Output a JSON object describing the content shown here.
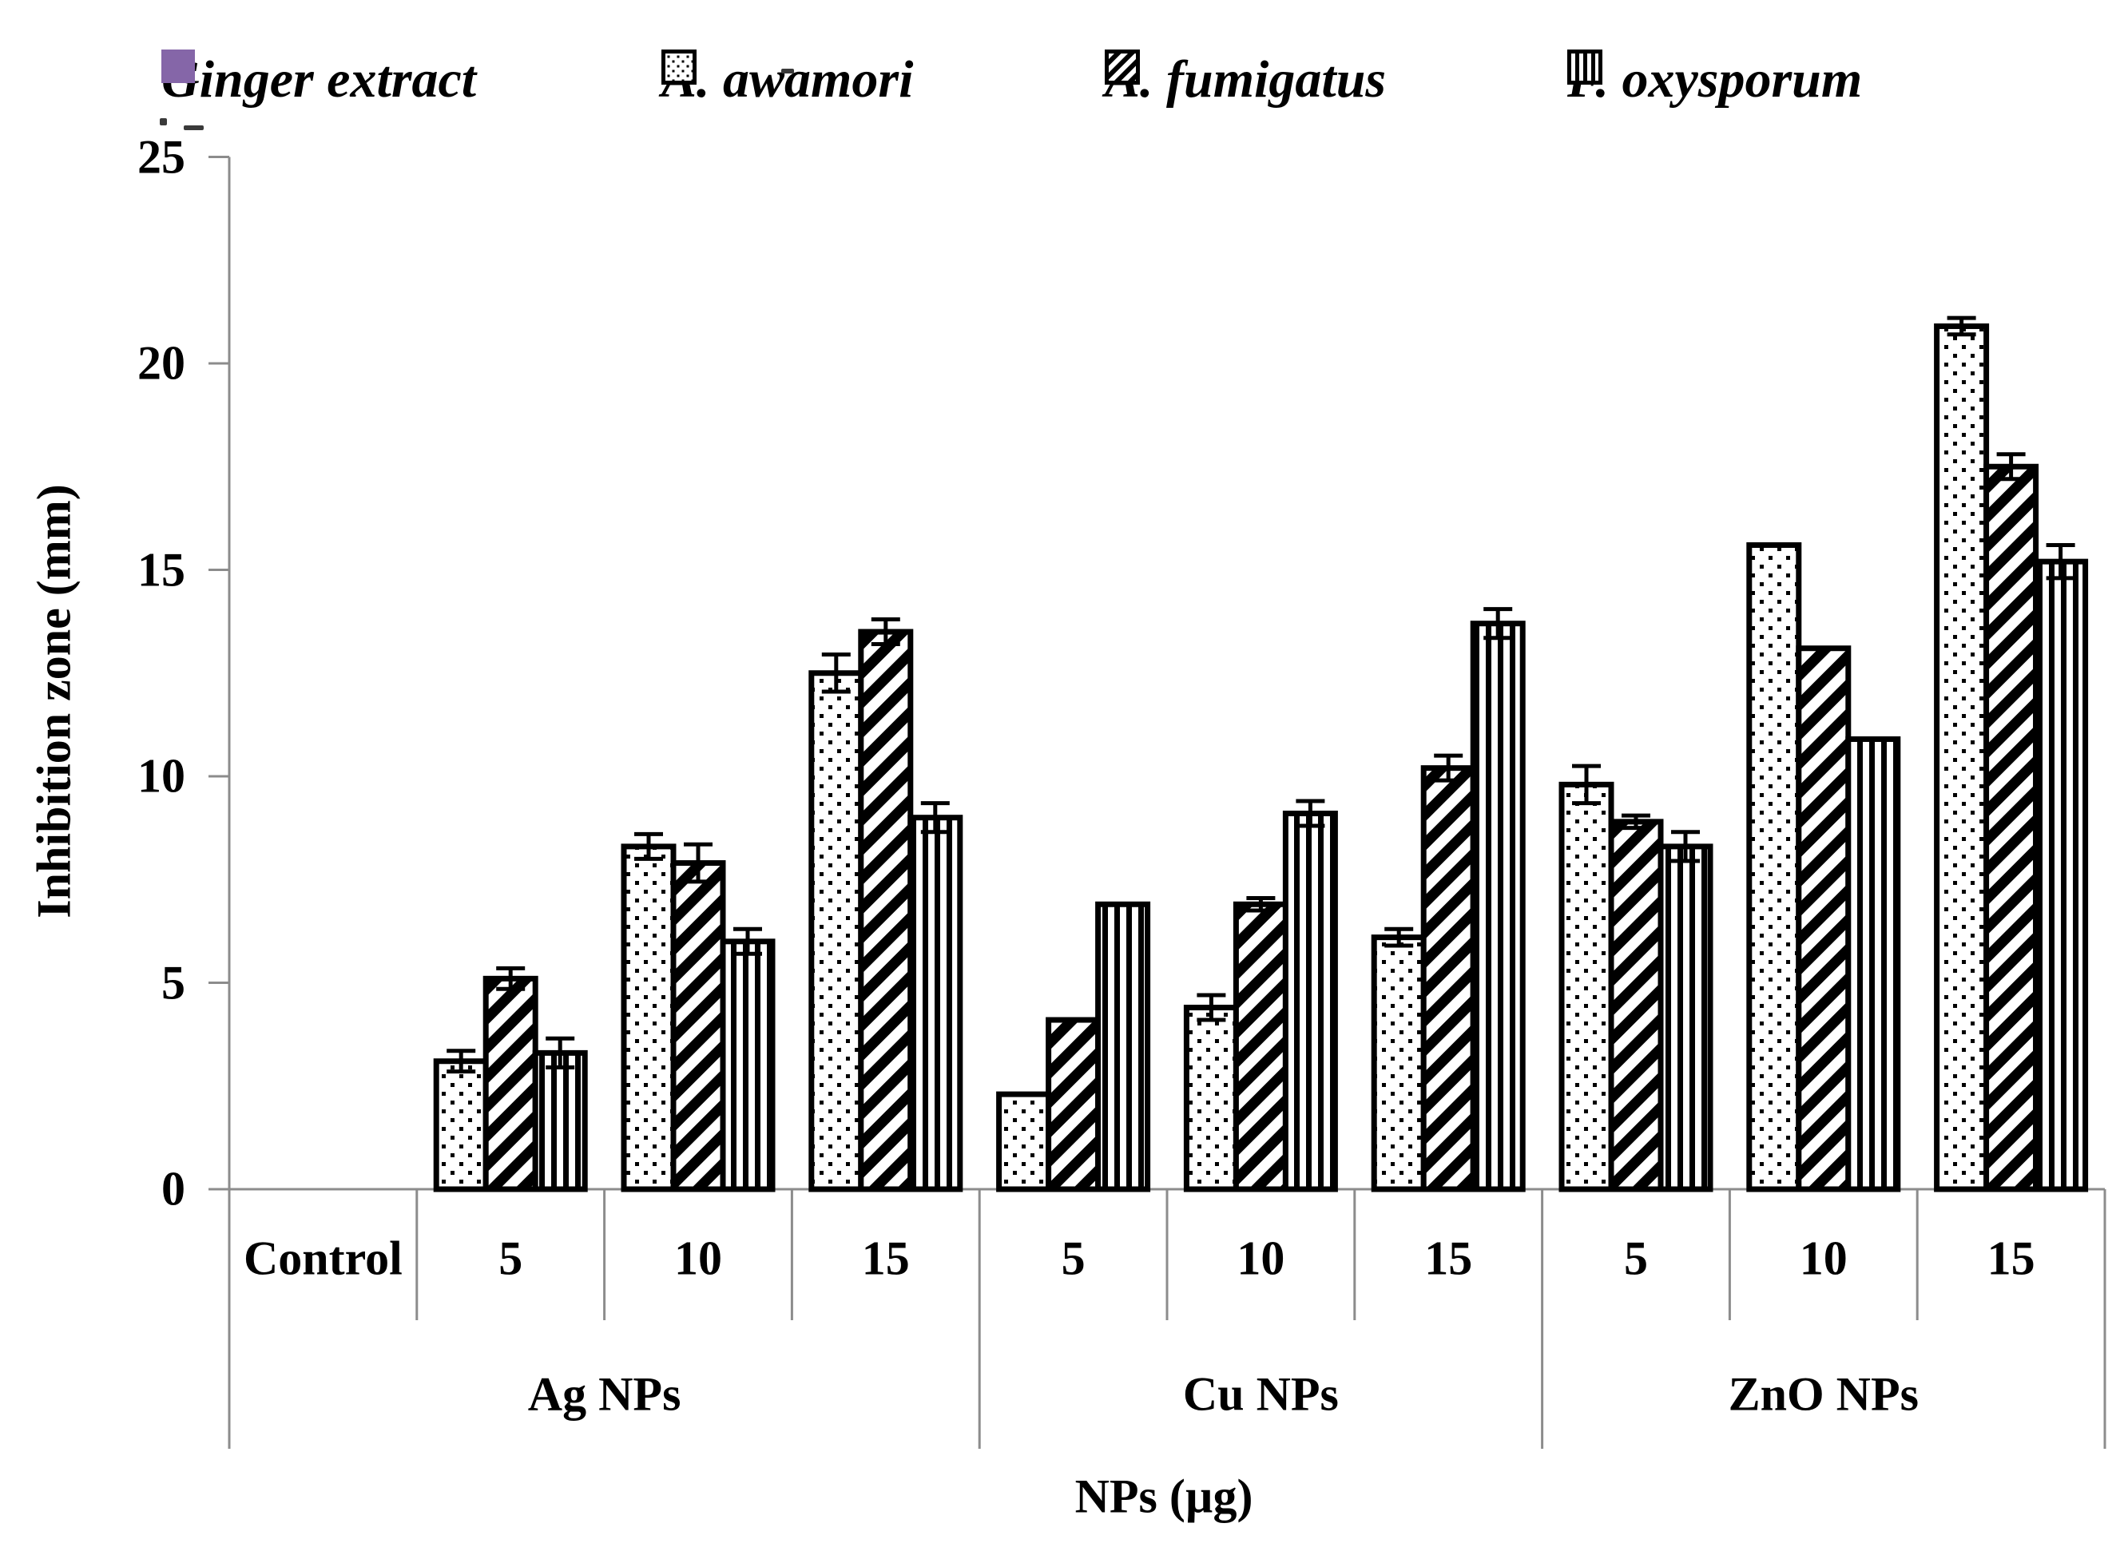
{
  "legend": {
    "items": [
      {
        "label": "Ginger extract",
        "pattern": "solid",
        "color": "#8566a8"
      },
      {
        "label": "A. awamori",
        "pattern": "dots"
      },
      {
        "label": "A. fumigatus",
        "pattern": "diagonal-up"
      },
      {
        "label": "F. oxysporum",
        "pattern": "vertical"
      }
    ]
  },
  "y_axis": {
    "title": "Inhibition zone (mm)"
  },
  "x_axis": {
    "title": "NPs (µg)"
  },
  "colors": {
    "axis_gray": "#8c8c8c",
    "bar_black": "#000000",
    "purple": "#8566a8"
  },
  "chart_data": {
    "type": "bar",
    "title": "",
    "ylabel": "Inhibition zone (mm)",
    "xlabel": "NPs (µg)",
    "ylim": [
      0,
      25
    ],
    "yticks": [
      0,
      5,
      10,
      15,
      20,
      25
    ],
    "grid": "off",
    "legend_position": "top",
    "series_names": [
      "Ginger extract",
      "A. awamori",
      "A. fumigatus",
      "F. oxysporum"
    ],
    "groups": [
      {
        "label": "Ag NPs",
        "columns": [
          {
            "label": "Control",
            "values": [
              0,
              0,
              0,
              0
            ],
            "errors": [
              0,
              0,
              0,
              0
            ]
          },
          {
            "label": "5",
            "values": [
              0,
              3.1,
              5.1,
              3.3
            ],
            "errors": [
              0,
              0.25,
              0.25,
              0.35
            ]
          },
          {
            "label": "10",
            "values": [
              0,
              8.3,
              7.9,
              6.0
            ],
            "errors": [
              0,
              0.3,
              0.45,
              0.3
            ]
          },
          {
            "label": "15",
            "values": [
              0,
              12.5,
              13.5,
              9.0
            ],
            "errors": [
              0,
              0.45,
              0.3,
              0.35
            ]
          }
        ]
      },
      {
        "label": "Cu NPs",
        "columns": [
          {
            "label": "5",
            "values": [
              0,
              2.3,
              4.1,
              6.9
            ],
            "errors": [
              0,
              0,
              0,
              0
            ]
          },
          {
            "label": "10",
            "values": [
              0,
              4.4,
              6.9,
              9.1
            ],
            "errors": [
              0,
              0.3,
              0.15,
              0.3
            ]
          },
          {
            "label": "15",
            "values": [
              0,
              6.1,
              10.2,
              13.7
            ],
            "errors": [
              0,
              0.2,
              0.3,
              0.35
            ]
          }
        ]
      },
      {
        "label": "ZnO NPs",
        "columns": [
          {
            "label": "5",
            "values": [
              0,
              9.8,
              8.9,
              8.3
            ],
            "errors": [
              0,
              0.45,
              0.15,
              0.35
            ]
          },
          {
            "label": "10",
            "values": [
              0,
              15.6,
              13.1,
              10.9
            ],
            "errors": [
              0,
              0,
              0,
              0
            ]
          },
          {
            "label": "15",
            "values": [
              0,
              20.9,
              17.5,
              15.2
            ],
            "errors": [
              0,
              0.2,
              0.3,
              0.4
            ]
          }
        ]
      }
    ]
  }
}
